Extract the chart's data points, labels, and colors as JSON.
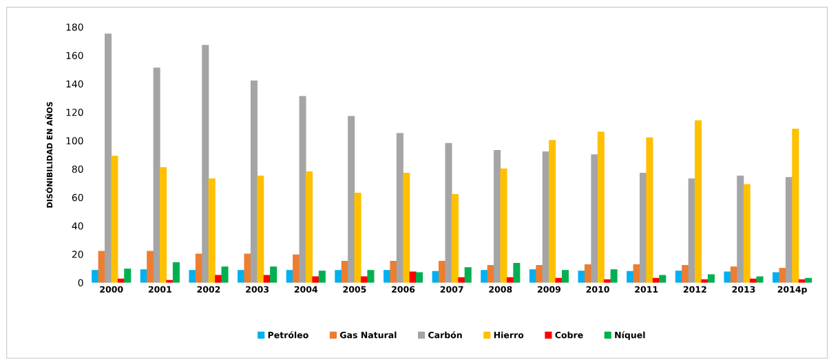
{
  "chart_data": {
    "type": "bar",
    "ylabel": "DISÓNIBILIDAD EN AÑOS",
    "categories": [
      "2000",
      "2001",
      "2002",
      "2003",
      "2004",
      "2005",
      "2006",
      "2007",
      "2008",
      "2009",
      "2010",
      "2011",
      "2012",
      "2013",
      "2014p"
    ],
    "series": [
      {
        "name": "Petróleo",
        "color": "#00b0f0",
        "values": [
          8.5,
          9,
          8.5,
          8.5,
          8.5,
          8.5,
          8.5,
          7.8,
          8.5,
          9,
          8,
          7.8,
          8,
          7.5,
          7
        ]
      },
      {
        "name": "Gas Natural",
        "color": "#ed7d31",
        "values": [
          22,
          22,
          20,
          20,
          19.5,
          15,
          15,
          15,
          12,
          12,
          12.5,
          12.5,
          12,
          11,
          10
        ]
      },
      {
        "name": "Carbón",
        "color": "#a5a5a5",
        "values": [
          175,
          151,
          167,
          142,
          131,
          117,
          105,
          98,
          93,
          92,
          90,
          77,
          73,
          75,
          74
        ]
      },
      {
        "name": "Hierro",
        "color": "#ffc000",
        "values": [
          89,
          81,
          73,
          75,
          78,
          63,
          77,
          62,
          80,
          100,
          106,
          102,
          114,
          69,
          108
        ]
      },
      {
        "name": "Cobre",
        "color": "#ff0000",
        "values": [
          2.5,
          1.5,
          5,
          5,
          4,
          4,
          7.5,
          3.5,
          3.5,
          3,
          2,
          3,
          2,
          2.5,
          2
        ]
      },
      {
        "name": "Níquel",
        "color": "#00b050",
        "values": [
          9.5,
          14,
          11,
          11,
          8,
          8.5,
          7,
          10.5,
          13.5,
          8.5,
          9,
          5,
          5.5,
          4,
          3
        ]
      }
    ],
    "ylim": [
      0,
      180
    ],
    "yticks": [
      0,
      20,
      40,
      60,
      80,
      100,
      120,
      140,
      160,
      180
    ],
    "grid": false,
    "legend": "bottom"
  }
}
